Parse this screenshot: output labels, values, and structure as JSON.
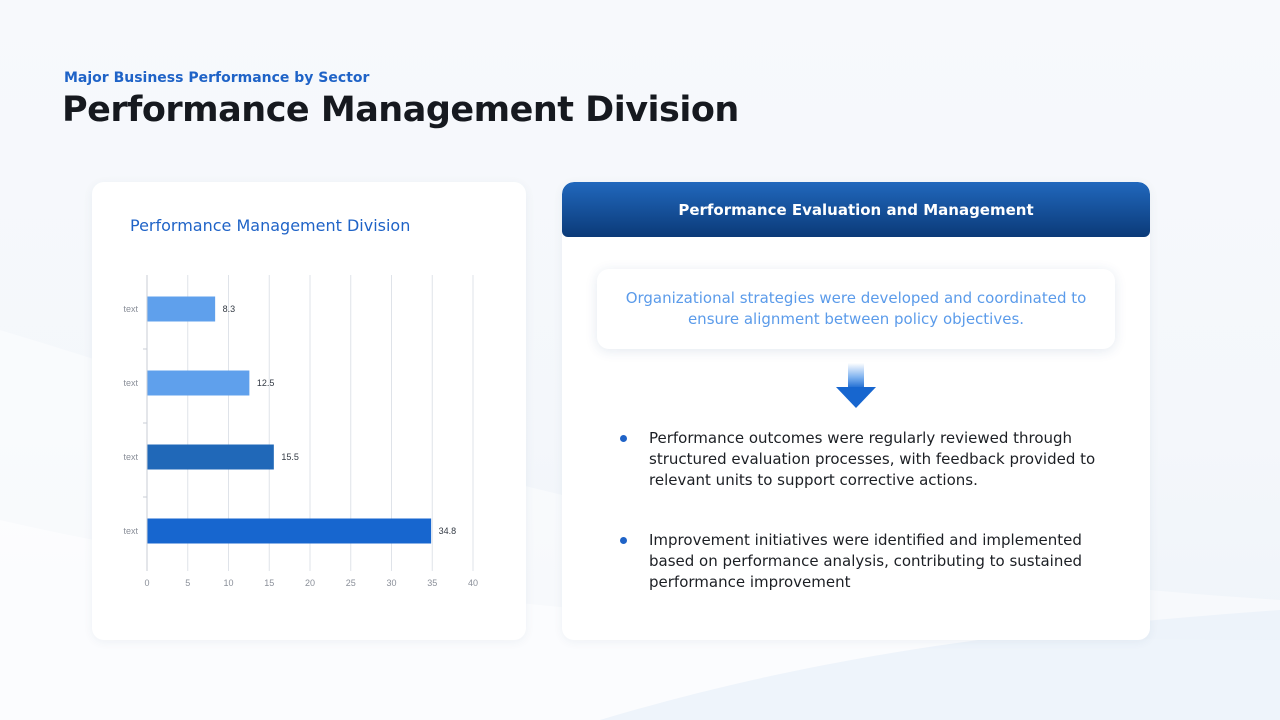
{
  "header": {
    "subtitle": "Major Business Performance by Sector",
    "title": "Performance Management Division"
  },
  "chart_card": {
    "title": "Performance Management Division"
  },
  "chart_data": {
    "type": "bar",
    "orientation": "horizontal",
    "title": "Performance Management Division",
    "categories": [
      "text",
      "text",
      "text",
      "text"
    ],
    "values": [
      8.3,
      12.5,
      15.5,
      34.8
    ],
    "bar_colors": [
      "#5fa0ec",
      "#5fa0ec",
      "#2068b8",
      "#1766cf"
    ],
    "xlim": [
      0,
      40
    ],
    "xticks": [
      0,
      5,
      10,
      15,
      20,
      25,
      30,
      35,
      40
    ],
    "xlabel": "",
    "ylabel": "",
    "grid": "vertical",
    "legend": "none"
  },
  "info_card": {
    "header": "Performance Evaluation and Management",
    "summary": "Organizational strategies were developed and coordinated to ensure alignment between policy objectives.",
    "bullets": [
      "Performance outcomes were regularly reviewed through structured evaluation processes, with feedback provided to relevant units to support corrective actions.",
      "Improvement initiatives  were identified and implemented based on performance analysis, contributing to sustained performance improvement"
    ]
  },
  "colors": {
    "accent": "#1f63c7",
    "header_gradient_top": "#2168bd",
    "header_gradient_bottom": "#0b3a78",
    "summary_text": "#5b9bea"
  },
  "icons": {
    "arrow": "arrow-down-icon",
    "bullet": "bullet-dot-icon"
  }
}
